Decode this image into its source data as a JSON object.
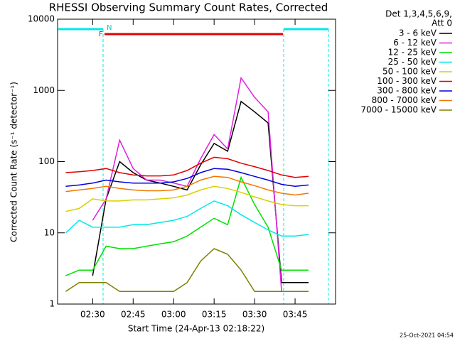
{
  "chart_data": {
    "type": "line",
    "title": "RHESSI Observing Summary Count Rates, Corrected",
    "xlabel": "Start Time (24-Apr-13 02:18:22)",
    "ylabel": "Corrected Count Rate (s⁻¹ detector⁻¹)",
    "legend_header": [
      "Det 1,3,4,5,6,9,",
      "Att 0"
    ],
    "timestamp": "25-Oct-2021 04:54",
    "annotations": [
      "F",
      "N"
    ],
    "log_scale": true,
    "xlim": [
      "02:17",
      "04:00"
    ],
    "xticks": [
      "02:30",
      "02:45",
      "03:00",
      "03:15",
      "03:30",
      "03:45"
    ],
    "ylim": [
      1,
      10000
    ],
    "yticks": [
      1,
      10,
      100,
      1000,
      10000
    ],
    "x": [
      "02:20",
      "02:25",
      "02:30",
      "02:35",
      "02:40",
      "02:45",
      "02:50",
      "02:55",
      "03:00",
      "03:05",
      "03:10",
      "03:15",
      "03:20",
      "03:25",
      "03:30",
      "03:35",
      "03:40",
      "03:45",
      "03:50"
    ],
    "series": [
      {
        "name": "3 - 6 keV",
        "color": "#000000",
        "values": [
          null,
          null,
          2.5,
          30,
          100,
          70,
          55,
          50,
          45,
          40,
          90,
          180,
          140,
          700,
          500,
          350,
          2,
          2,
          2
        ]
      },
      {
        "name": "6 - 12 keV",
        "color": "#e020e0",
        "values": [
          null,
          null,
          15,
          30,
          200,
          80,
          55,
          55,
          50,
          45,
          110,
          240,
          150,
          1500,
          800,
          500,
          1.5,
          1.5,
          1.5
        ]
      },
      {
        "name": "12 - 25 keV",
        "color": "#00e000",
        "values": [
          2.5,
          3,
          3,
          6.5,
          6,
          6,
          6.5,
          7,
          7.5,
          9,
          12,
          16,
          13,
          60,
          25,
          12,
          3,
          3,
          3
        ]
      },
      {
        "name": "25 - 50 keV",
        "color": "#00e8e8",
        "values": [
          10,
          15,
          12,
          12,
          12,
          13,
          13,
          14,
          15,
          17,
          22,
          28,
          24,
          18,
          14,
          11,
          9,
          9,
          9.5
        ]
      },
      {
        "name": "50 - 100 keV",
        "color": "#d8d000",
        "values": [
          20,
          22,
          30,
          28,
          28,
          29,
          29,
          30,
          31,
          34,
          40,
          45,
          42,
          37,
          32,
          28,
          25,
          24,
          24
        ]
      },
      {
        "name": "100 - 300 keV",
        "color": "#e00000",
        "values": [
          70,
          72,
          75,
          80,
          70,
          65,
          63,
          63,
          65,
          75,
          95,
          115,
          110,
          95,
          85,
          75,
          65,
          60,
          62
        ]
      },
      {
        "name": "300 - 800 keV",
        "color": "#0000e0",
        "values": [
          45,
          47,
          50,
          55,
          52,
          50,
          50,
          50,
          52,
          58,
          70,
          80,
          78,
          70,
          62,
          55,
          48,
          45,
          47
        ]
      },
      {
        "name": "800 - 7000 keV",
        "color": "#f07800",
        "values": [
          38,
          40,
          42,
          45,
          42,
          40,
          39,
          39,
          40,
          45,
          55,
          62,
          60,
          52,
          46,
          40,
          36,
          34,
          36
        ]
      },
      {
        "name": "7000 - 15000 keV",
        "color": "#808000",
        "values": [
          1.5,
          2,
          2,
          2,
          1.5,
          1.5,
          1.5,
          1.5,
          1.5,
          2,
          4,
          6,
          5,
          3,
          1.5,
          1.5,
          1.5,
          1.5,
          1.5
        ]
      }
    ]
  }
}
